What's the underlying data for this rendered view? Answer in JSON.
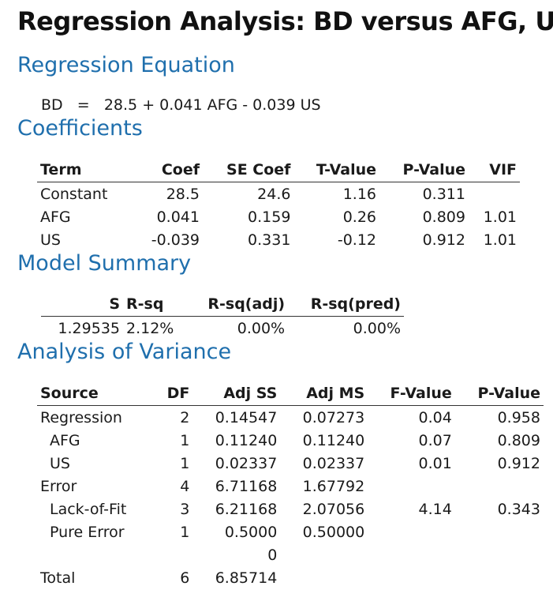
{
  "title": "Regression Analysis: BD versus AFG, US",
  "sections": {
    "equation": "Regression Equation",
    "coefficients": "Coefficients",
    "summary": "Model Summary",
    "anova": "Analysis of Variance"
  },
  "equation": {
    "lhs": "BD",
    "eq": "=",
    "rhs": "28.5 + 0.041 AFG - 0.039 US"
  },
  "coefficients": {
    "headers": [
      "Term",
      "Coef",
      "SE Coef",
      "T-Value",
      "P-Value",
      "VIF"
    ],
    "rows": [
      [
        "Constant",
        "28.5",
        "24.6",
        "1.16",
        "0.311",
        ""
      ],
      [
        "AFG",
        "0.041",
        "0.159",
        "0.26",
        "0.809",
        "1.01"
      ],
      [
        "US",
        "-0.039",
        "0.331",
        "-0.12",
        "0.912",
        "1.01"
      ]
    ]
  },
  "summary": {
    "headers": [
      "S",
      "R-sq",
      "R-sq(adj)",
      "R-sq(pred)"
    ],
    "row": [
      "1.29535",
      "2.12%",
      "0.00%",
      "0.00%"
    ]
  },
  "anova": {
    "headers": [
      "Source",
      "DF",
      "Adj SS",
      "Adj MS",
      "F-Value",
      "P-Value"
    ],
    "rows": [
      [
        "Regression",
        "2",
        "0.14547",
        "0.07273",
        "0.04",
        "0.958"
      ],
      [
        "AFG",
        "1",
        "0.11240",
        "0.11240",
        "0.07",
        "0.809"
      ],
      [
        "US",
        "1",
        "0.02337",
        "0.02337",
        "0.01",
        "0.912"
      ],
      [
        "Error",
        "4",
        "6.71168",
        "1.67792",
        "",
        ""
      ],
      [
        "Lack-of-Fit",
        "3",
        "6.21168",
        "2.07056",
        "4.14",
        "0.343"
      ],
      [
        "Pure Error",
        "1",
        "0.5000",
        "0.50000",
        "",
        ""
      ],
      [
        "",
        "",
        "0",
        "",
        "",
        ""
      ],
      [
        "Total",
        "6",
        "6.85714",
        "",
        "",
        ""
      ]
    ]
  }
}
